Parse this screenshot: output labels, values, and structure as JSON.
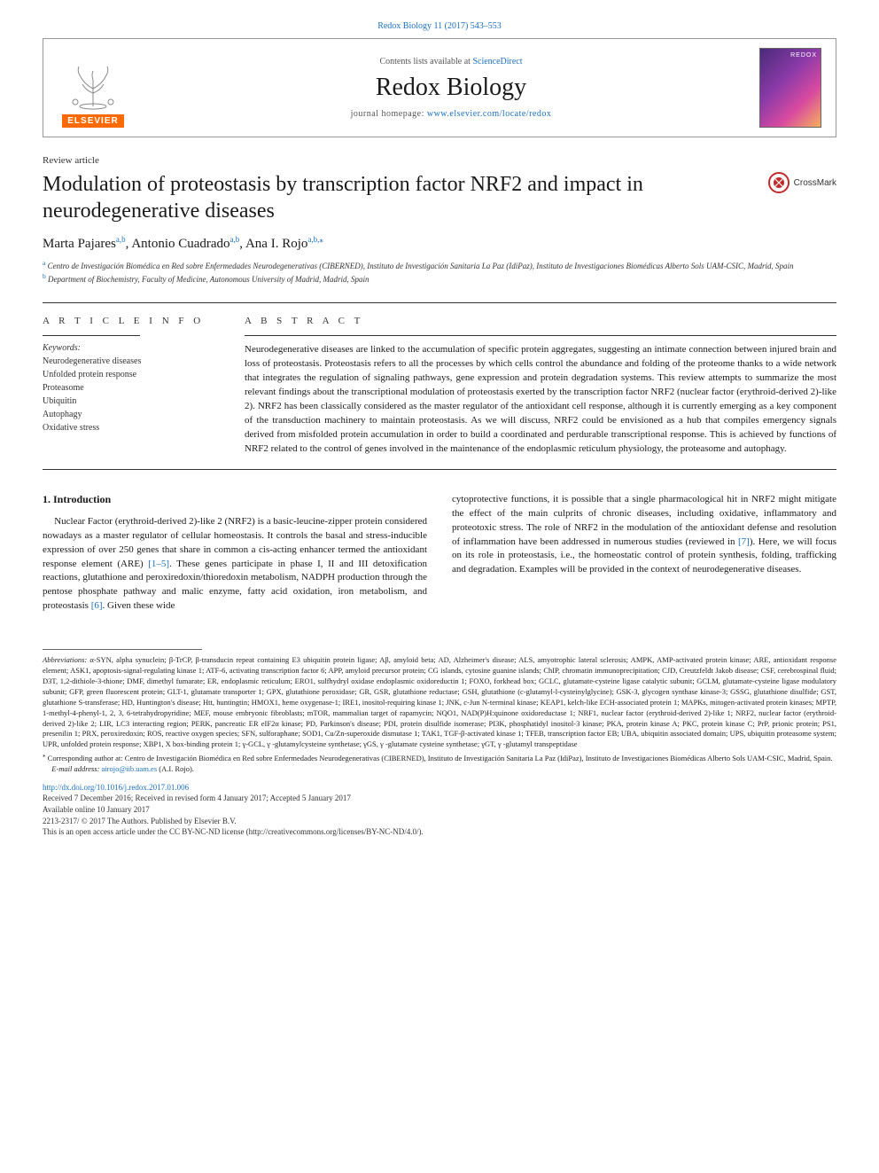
{
  "citation": "Redox Biology 11 (2017) 543–553",
  "header": {
    "contents_prefix": "Contents lists available at ",
    "contents_link": "ScienceDirect",
    "journal_name": "Redox Biology",
    "homepage_prefix": "journal homepage: ",
    "homepage_link": "www.elsevier.com/locate/redox",
    "publisher": "ELSEVIER",
    "cover_label": "REDOX"
  },
  "article": {
    "type": "Review article",
    "title": "Modulation of proteostasis by transcription factor NRF2 and impact in neurodegenerative diseases",
    "crossmark": "CrossMark",
    "authors_html": "Marta Pajares",
    "authors": [
      {
        "name": "Marta Pajares",
        "sup": "a,b"
      },
      {
        "name": "Antonio Cuadrado",
        "sup": "a,b"
      },
      {
        "name": "Ana I. Rojo",
        "sup": "a,b,⁎"
      }
    ],
    "affiliations": [
      {
        "sup": "a",
        "text": "Centro de Investigación Biomédica en Red sobre Enfermedades Neurodegenerativas (CIBERNED), Instituto de Investigación Sanitaria La Paz (IdiPaz), Instituto de Investigaciones Biomédicas Alberto Sols UAM-CSIC, Madrid, Spain"
      },
      {
        "sup": "b",
        "text": "Department of Biochemistry, Faculty of Medicine, Autonomous University of Madrid, Madrid, Spain"
      }
    ]
  },
  "info": {
    "header": "A R T I C L E  I N F O",
    "keywords_label": "Keywords:",
    "keywords": [
      "Neurodegenerative diseases",
      "Unfolded protein response",
      "Proteasome",
      "Ubiquitin",
      "Autophagy",
      "Oxidative stress"
    ]
  },
  "abstract": {
    "header": "A B S T R A C T",
    "text": "Neurodegenerative diseases are linked to the accumulation of specific protein aggregates, suggesting an intimate connection between injured brain and loss of proteostasis. Proteostasis refers to all the processes by which cells control the abundance and folding of the proteome thanks to a wide network that integrates the regulation of signaling pathways, gene expression and protein degradation systems. This review attempts to summarize the most relevant findings about the transcriptional modulation of proteostasis exerted by the transcription factor NRF2 (nuclear factor (erythroid-derived 2)-like 2). NRF2 has been classically considered as the master regulator of the antioxidant cell response, although it is currently emerging as a key component of the transduction machinery to maintain proteostasis. As we will discuss, NRF2 could be envisioned as a hub that compiles emergency signals derived from misfolded protein accumulation in order to build a coordinated and perdurable transcriptional response. This is achieved by functions of NRF2 related to the control of genes involved in the maintenance of the endoplasmic reticulum physiology, the proteasome and autophagy."
  },
  "body": {
    "heading": "1. Introduction",
    "left_para": "Nuclear Factor (erythroid-derived 2)-like 2 (NRF2) is a basic-leucine-zipper protein considered nowadays as a master regulator of cellular homeostasis. It controls the basal and stress-inducible expression of over 250 genes that share in common a cis-acting enhancer termed the antioxidant response element (ARE) [1–5]. These genes participate in phase I, II and III detoxification reactions, glutathione and peroxiredoxin/thioredoxin metabolism, NADPH production through the pentose phosphate pathway and malic enzyme, fatty acid oxidation, iron metabolism, and proteostasis [6]. Given these wide",
    "right_para": "cytoprotective functions, it is possible that a single pharmacological hit in NRF2 might mitigate the effect of the main culprits of chronic diseases, including oxidative, inflammatory and proteotoxic stress. The role of NRF2 in the modulation of the antioxidant defense and resolution of inflammation have been addressed in numerous studies (reviewed in [7]). Here, we will focus on its role in proteostasis, i.e., the homeostatic control of protein synthesis, folding, trafficking and degradation. Examples will be provided in the context of neurodegenerative diseases.",
    "ref1": "[1–5]",
    "ref2": "[6]",
    "ref3": "[7]"
  },
  "footnotes": {
    "abbrev_label": "Abbreviations:",
    "abbrev_text": " α-SYN, alpha synuclein; β-TrCP, β-transducin repeat containing E3 ubiquitin protein ligase; Aβ, amyloid beta; AD, Alzheimer's disease; ALS, amyotrophic lateral sclerosis; AMPK, AMP-activated protein kinase; ARE, antioxidant response element; ASK1, apoptosis-signal-regulating kinase 1; ATF-6, activating transcription factor 6; APP, amyloid precursor protein; CG islands, cytosine guanine islands; ChIP, chromatin immunoprecipitation; CJD, Creutzfeldt Jakob disease; CSF, cerebrospinal fluid; D3T, 1,2-dithiole-3-thione; DMF, dimethyl fumarate; ER, endoplasmic reticulum; ERO1, sulfhydryl oxidase endoplasmic oxidoreductin 1; FOXO, forkhead box; GCLC, glutamate-cysteine ligase catalytic subunit; GCLM, glutamate-cysteine ligase modulatory subunit; GFP, green fluorescent protein; GLT-1, glutamate transporter 1; GPX, glutathione peroxidase; GR, GSR, glutathione reductase; GSH, glutathione (c-glutamyl-l-cysteinylglycine); GSK-3, glycogen synthase kinase-3; GSSG, glutathione disulfide; GST, glutathione S-transferase; HD, Huntington's disease; Htt, huntingtin; HMOX1, heme oxygenase-1; IRE1, inositol-requiring kinase 1; JNK, c-Jun N-terminal kinase; KEAP1, kelch-like ECH-associated protein 1; MAPKs, mitogen-activated protein kinases; MPTP, 1-methyl-4-phenyl-1, 2, 3, 6-tetrahydropyridine; MEF, mouse embryonic fibroblasts; mTOR, mammalian target of rapamycin; NQO1, NAD(P)H:quinone oxidoreductase 1; NRF1, nuclear factor (erythroid-derived 2)-like 1; NRF2, nuclear factor (erythroid-derived 2)-like 2; LIR, LC3 interacting region; PERK, pancreatic ER eIF2α kinase; PD, Parkinson's disease; PDI, protein disulfide isomerase; PI3K, phosphatidyl inositol-3 kinase; PKA, protein kinase A; PKC, protein kinase C; PrP, prionic protein; PS1, presenilin 1; PRX, peroxiredoxin; ROS, reactive oxygen species; SFN, sulforaphane; SOD1, Cu/Zn-superoxide dismutase 1; TAK1, TGF-β-activated kinase 1; TFEB, transcription factor EB; UBA, ubiquitin associated domain; UPS, ubiquitin proteasome system; UPR, unfolded protein response; XBP1, X box-binding protein 1; γ-GCL, γ -glutamylcysteine synthetase; γGS, γ -glutamate cysteine synthetase; γGT, γ -glutamyl transpeptidase",
    "corresp_marker": "⁎",
    "corresp_text": " Corresponding author at: Centro de Investigación Biomédica en Red sobre Enfermedades Neurodegenerativas (CIBERNED), Instituto de Investigación Sanitaria La Paz (IdiPaz), Instituto de Investigaciones Biomédicas Alberto Sols UAM-CSIC, Madrid, Spain.",
    "email_label": "E-mail address: ",
    "email": "airojo@iib.uam.es",
    "email_suffix": " (A.I. Rojo)."
  },
  "footer": {
    "doi": "http://dx.doi.org/10.1016/j.redox.2017.01.006",
    "received": "Received 7 December 2016; Received in revised form 4 January 2017; Accepted 5 January 2017",
    "online": "Available online 10 January 2017",
    "copyright": "2213-2317/ © 2017 The Authors. Published by Elsevier B.V.",
    "license": "This is an open access article under the CC BY-NC-ND license (http://creativecommons.org/licenses/BY-NC-ND/4.0/)."
  },
  "colors": {
    "link": "#1a6fb8",
    "publisher_orange": "#ff6a00"
  }
}
